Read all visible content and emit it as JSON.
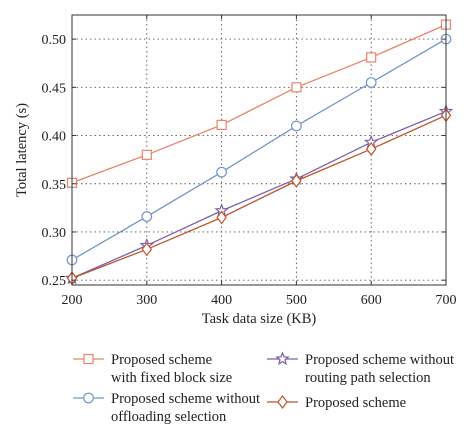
{
  "chart_data": {
    "type": "line",
    "xlabel": "Task data size (KB)",
    "ylabel": "Total latency (s)",
    "xlim": [
      200,
      700
    ],
    "ylim": [
      0.245,
      0.525
    ],
    "x": [
      200,
      300,
      400,
      500,
      600,
      700
    ],
    "xticks": [
      "200",
      "300",
      "400",
      "500",
      "600",
      "700"
    ],
    "yticks": [
      "0.25",
      "0.30",
      "0.35",
      "0.40",
      "0.45",
      "0.50"
    ],
    "ytick_values": [
      0.25,
      0.3,
      0.35,
      0.4,
      0.45,
      0.5
    ],
    "grid": true,
    "legend_position": "bottom",
    "series": [
      {
        "name": "Proposed scheme with fixed block size",
        "legend_lines": [
          "Proposed scheme",
          "with fixed block size"
        ],
        "marker": "square",
        "color": "#e8826e",
        "values": [
          0.351,
          0.38,
          0.411,
          0.45,
          0.481,
          0.515
        ]
      },
      {
        "name": "Proposed scheme without offloading selection",
        "legend_lines": [
          "Proposed scheme without",
          "offloading selection"
        ],
        "marker": "circle",
        "color": "#6f96c8",
        "values": [
          0.271,
          0.316,
          0.362,
          0.41,
          0.455,
          0.5
        ]
      },
      {
        "name": "Proposed scheme without routing path selection",
        "legend_lines": [
          "Proposed scheme without",
          "routing path selection"
        ],
        "marker": "star",
        "color": "#7e5fa8",
        "values": [
          0.252,
          0.286,
          0.322,
          0.355,
          0.393,
          0.425
        ]
      },
      {
        "name": "Proposed scheme",
        "legend_lines": [
          "Proposed scheme"
        ],
        "marker": "diamond",
        "color": "#c0542a",
        "values": [
          0.252,
          0.282,
          0.315,
          0.353,
          0.386,
          0.421
        ]
      }
    ]
  }
}
